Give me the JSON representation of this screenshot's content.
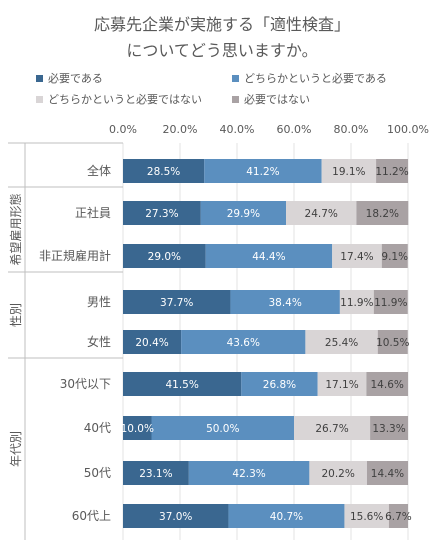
{
  "chart_data": {
    "type": "bar",
    "orientation": "horizontal",
    "stacked": true,
    "title_line1": "応募先企業が実施する「適性検査」",
    "title_line2": "についてどう思いますか。",
    "xlim": [
      0,
      100
    ],
    "x_ticks": [
      "0.0%",
      "20.0%",
      "40.0%",
      "60.0%",
      "80.0%",
      "100.0%"
    ],
    "legend_position": "top",
    "grid": true,
    "groups": [
      {
        "label": "",
        "rows": [
          0
        ]
      },
      {
        "label": "希望雇用形態",
        "rows": [
          1,
          2
        ]
      },
      {
        "label": "性別",
        "rows": [
          3,
          4
        ]
      },
      {
        "label": "年代別",
        "rows": [
          5,
          6,
          7,
          8
        ]
      }
    ],
    "categories": [
      "全体",
      "正社員",
      "非正規雇用計",
      "男性",
      "女性",
      "30代以下",
      "40代",
      "50代",
      "60代上"
    ],
    "series": [
      {
        "name": "必要である",
        "color": "#3a6790",
        "values": [
          28.5,
          27.3,
          29.0,
          37.7,
          20.4,
          41.5,
          10.0,
          23.1,
          37.0
        ],
        "labels": [
          "28.5%",
          "27.3%",
          "29.0%",
          "37.7%",
          "20.4%",
          "41.5%",
          "10.0%",
          "23.1%",
          "37.0%"
        ]
      },
      {
        "name": "どちらかというと必要である",
        "color": "#5b8fbf",
        "values": [
          41.2,
          29.9,
          44.4,
          38.4,
          43.6,
          26.8,
          50.0,
          42.3,
          40.7
        ],
        "labels": [
          "41.2%",
          "29.9%",
          "44.4%",
          "38.4%",
          "43.6%",
          "26.8%",
          "50.0%",
          "42.3%",
          "40.7%"
        ]
      },
      {
        "name": "どちらかというと必要ではない",
        "color": "#d9d5d6",
        "values": [
          19.1,
          24.7,
          17.4,
          11.9,
          25.4,
          17.1,
          26.7,
          20.2,
          15.6
        ],
        "labels": [
          "19.1%",
          "24.7%",
          "17.4%",
          "11.9%",
          "25.4%",
          "17.1%",
          "26.7%",
          "20.2%",
          "15.6%"
        ]
      },
      {
        "name": "必要ではない",
        "color": "#a9a2a4",
        "values": [
          11.2,
          18.2,
          9.1,
          11.9,
          10.5,
          14.6,
          13.3,
          14.4,
          6.7
        ],
        "labels": [
          "11.2%",
          "18.2%",
          "9.1%",
          "11.9%",
          "10.5%",
          "14.6%",
          "13.3%",
          "14.4%",
          "6.7%"
        ]
      }
    ]
  }
}
